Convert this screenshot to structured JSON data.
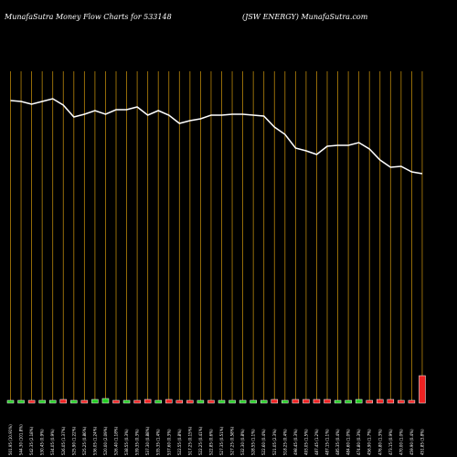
{
  "chart_data": {
    "type": "line",
    "title": "MunafaSutra  Money Flow  Charts for 533148",
    "subtitle": "(JSW ENERGY) MunafaSutra.com",
    "categories": [
      "501.95 (10.91%)",
      "544.30 (101.8%)",
      "542.35 (2.18%)",
      "530.45 (0.9%)",
      "534.05 (0.9%)",
      "526.05 (1.37%)",
      "525.90 (1.22%)",
      "525.25 (0.86%)",
      "536.05 (1.24%)",
      "520.00 (2.09%)",
      "526.40 (1.18%)",
      "538.55 (0.3%)",
      "539.35 (0.3%)",
      "537.30 (0.88%)",
      "535.35 (1.4%)",
      "537.60 (0.3%)",
      "522.55 (0.8%)",
      "517.25 (0.15%)",
      "522.25 (0.41%)",
      "522.85 (0.6%)",
      "527.35 (0.51%)",
      "527.25 (0.58%)",
      "532.30 (0.8%)",
      "528.55 (1.1%)",
      "522.60 (0.4%)",
      "521.05 (2.3%)",
      "518.25 (0.4%)",
      "498.45 (0.3%)",
      "493.05 (1.5%)",
      "487.45 (1.2%)",
      "487.15 (1.1%)",
      "485.35 (0.4%)",
      "484.60 (1.0%)",
      "474.80 (0.3%)",
      "456.90 (1.7%)",
      "476.80 (1.3%)",
      "473.15 (0.9%)",
      "470.00 (1.0%)",
      "459.90 (0.4%)",
      "451.85 (3.8%)"
    ],
    "series": [
      {
        "name": "money-flow",
        "color": "#ffffff",
        "values": [
          390,
          389,
          386,
          389,
          392,
          385,
          372,
          375,
          379,
          375,
          380,
          380,
          383,
          374,
          379,
          374,
          365,
          368,
          370,
          374,
          374,
          375,
          375,
          374,
          373,
          361,
          353,
          338,
          335,
          331,
          340,
          341,
          341,
          344,
          337,
          325,
          317,
          318,
          312,
          310
        ]
      },
      {
        "name": "volume",
        "axis": "y2",
        "values": [
          3,
          3,
          3,
          3,
          3,
          4,
          3,
          3,
          4,
          5,
          3,
          3,
          3,
          4,
          3,
          4,
          3,
          3,
          3,
          3,
          3,
          3,
          3,
          3,
          3,
          4,
          3,
          4,
          4,
          4,
          4,
          3,
          3,
          4,
          3,
          4,
          4,
          3,
          3,
          30
        ],
        "colors": [
          "#22cc22",
          "#22cc22",
          "#ee2222",
          "#22cc22",
          "#22cc22",
          "#ee2222",
          "#22cc22",
          "#ee2222",
          "#22cc22",
          "#22cc22",
          "#ee2222",
          "#22cc22",
          "#ee2222",
          "#ee2222",
          "#22cc22",
          "#ee2222",
          "#ee2222",
          "#ee2222",
          "#22cc22",
          "#ee2222",
          "#22cc22",
          "#22cc22",
          "#22cc22",
          "#22cc22",
          "#22cc22",
          "#ee2222",
          "#22cc22",
          "#ee2222",
          "#ee2222",
          "#ee2222",
          "#ee2222",
          "#22cc22",
          "#22cc22",
          "#22cc22",
          "#ee2222",
          "#ee2222",
          "#ee2222",
          "#ee2222",
          "#ee2222",
          "#ee2222"
        ]
      }
    ],
    "ylim": [
      0,
      500
    ],
    "y2lim": [
      0,
      400
    ],
    "grid_color": "#b8860b"
  }
}
